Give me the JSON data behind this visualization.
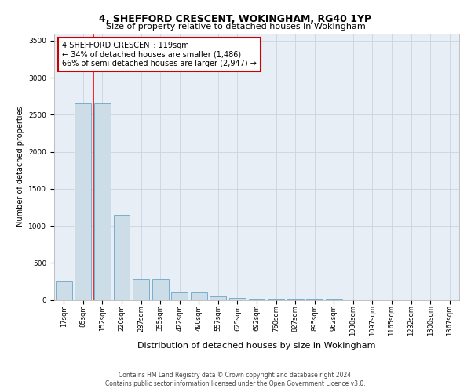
{
  "title": "4, SHEFFORD CRESCENT, WOKINGHAM, RG40 1YP",
  "subtitle": "Size of property relative to detached houses in Wokingham",
  "xlabel": "Distribution of detached houses by size in Wokingham",
  "ylabel": "Number of detached properties",
  "footer_line1": "Contains HM Land Registry data © Crown copyright and database right 2024.",
  "footer_line2": "Contains public sector information licensed under the Open Government Licence v3.0.",
  "bar_labels": [
    "17sqm",
    "85sqm",
    "152sqm",
    "220sqm",
    "287sqm",
    "355sqm",
    "422sqm",
    "490sqm",
    "557sqm",
    "625sqm",
    "692sqm",
    "760sqm",
    "827sqm",
    "895sqm",
    "962sqm",
    "1030sqm",
    "1097sqm",
    "1165sqm",
    "1232sqm",
    "1300sqm",
    "1367sqm"
  ],
  "bar_values": [
    250,
    2650,
    2650,
    1150,
    280,
    280,
    100,
    100,
    50,
    30,
    5,
    3,
    2,
    1,
    1,
    0,
    0,
    0,
    0,
    0,
    0
  ],
  "bar_color": "#ccdde8",
  "bar_edge_color": "#7aaecc",
  "ylim": [
    0,
    3600
  ],
  "yticks": [
    0,
    500,
    1000,
    1500,
    2000,
    2500,
    3000,
    3500
  ],
  "red_line_x": 1.55,
  "annotation_text": "4 SHEFFORD CRESCENT: 119sqm\n← 34% of detached houses are smaller (1,486)\n66% of semi-detached houses are larger (2,947) →",
  "annotation_box_color": "#ffffff",
  "annotation_box_edge_color": "#cc0000",
  "background_color": "#ffffff",
  "plot_bg_color": "#e8eef5",
  "grid_color": "#c8d4e0",
  "title_fontsize": 9,
  "subtitle_fontsize": 8,
  "annot_fontsize": 7,
  "ylabel_fontsize": 7,
  "xlabel_fontsize": 8,
  "tick_fontsize": 6,
  "footer_fontsize": 5.5
}
